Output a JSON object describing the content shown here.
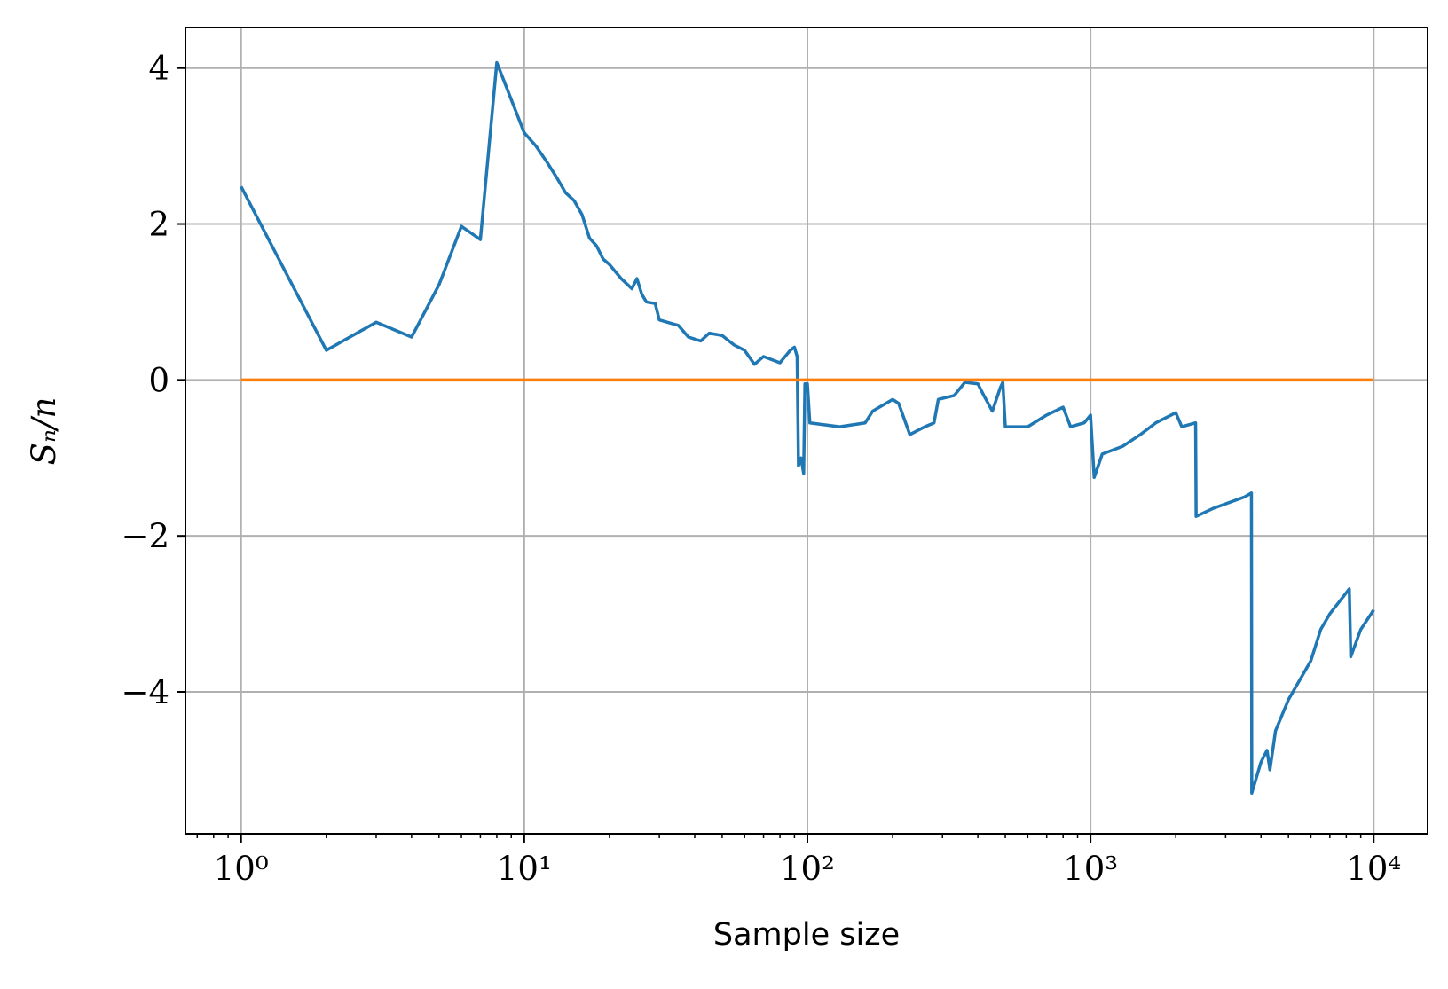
{
  "chart_data": {
    "type": "line",
    "xlabel": "Sample size",
    "ylabel": "Sₙ/n",
    "xscale": "log",
    "grid": true,
    "xlim": [
      0.636,
      15500
    ],
    "ylim": [
      -5.82,
      4.52
    ],
    "xticks": [
      {
        "value": 1,
        "label": "10⁰"
      },
      {
        "value": 10,
        "label": "10¹"
      },
      {
        "value": 100,
        "label": "10²"
      },
      {
        "value": 1000,
        "label": "10³"
      },
      {
        "value": 10000,
        "label": "10⁴"
      }
    ],
    "xminorticks": [
      0.7,
      0.8,
      0.9,
      2,
      3,
      4,
      5,
      6,
      7,
      8,
      9,
      20,
      30,
      40,
      50,
      60,
      70,
      80,
      90,
      200,
      300,
      400,
      500,
      600,
      700,
      800,
      900,
      2000,
      3000,
      4000,
      5000,
      6000,
      7000,
      8000,
      9000
    ],
    "yticks": [
      {
        "value": -4,
        "label": "−4"
      },
      {
        "value": -2,
        "label": "−2"
      },
      0,
      2,
      4
    ],
    "series": [
      {
        "color": "#1f77b4",
        "x": [
          1,
          2,
          3,
          4,
          5,
          6,
          7,
          8,
          10,
          11,
          12,
          13,
          14,
          15,
          16,
          17,
          18,
          19,
          20,
          22,
          24,
          25,
          26,
          27,
          29,
          30,
          35,
          38,
          42,
          45,
          50,
          55,
          60,
          65,
          70,
          80,
          87,
          90,
          92,
          93,
          95,
          97,
          98,
          100,
          102,
          130,
          160,
          170,
          200,
          210,
          230,
          260,
          280,
          290,
          330,
          360,
          400,
          420,
          450,
          480,
          490,
          500,
          600,
          700,
          800,
          850,
          950,
          1000,
          1030,
          1100,
          1300,
          1500,
          1700,
          2000,
          2100,
          2350,
          2360,
          2700,
          3500,
          3700,
          3710,
          4000,
          4200,
          4300,
          4500,
          5000,
          6000,
          6500,
          7000,
          8200,
          8300,
          9000,
          10000
        ],
        "values": [
          2.48,
          0.38,
          0.74,
          0.55,
          1.22,
          1.97,
          1.8,
          4.07,
          3.17,
          3.0,
          2.8,
          2.6,
          2.4,
          2.3,
          2.12,
          1.82,
          1.72,
          1.55,
          1.48,
          1.3,
          1.17,
          1.3,
          1.1,
          1.0,
          0.98,
          0.77,
          0.7,
          0.55,
          0.5,
          0.6,
          0.57,
          0.45,
          0.38,
          0.2,
          0.3,
          0.22,
          0.38,
          0.42,
          0.3,
          -1.1,
          -1.0,
          -1.2,
          -0.05,
          -0.05,
          -0.55,
          -0.6,
          -0.55,
          -0.4,
          -0.25,
          -0.3,
          -0.7,
          -0.6,
          -0.55,
          -0.25,
          -0.2,
          -0.03,
          -0.05,
          -0.2,
          -0.4,
          -0.1,
          -0.03,
          -0.6,
          -0.6,
          -0.45,
          -0.35,
          -0.6,
          -0.55,
          -0.45,
          -1.25,
          -0.95,
          -0.85,
          -0.7,
          -0.55,
          -0.42,
          -0.6,
          -0.55,
          -1.75,
          -1.65,
          -1.5,
          -1.45,
          -5.3,
          -4.9,
          -4.75,
          -5.0,
          -4.5,
          -4.1,
          -3.6,
          -3.2,
          -3.0,
          -2.68,
          -3.55,
          -3.2,
          -2.95
        ]
      },
      {
        "color": "#ff7f0e",
        "x": [
          1,
          10000
        ],
        "values": [
          0,
          0
        ]
      }
    ]
  }
}
